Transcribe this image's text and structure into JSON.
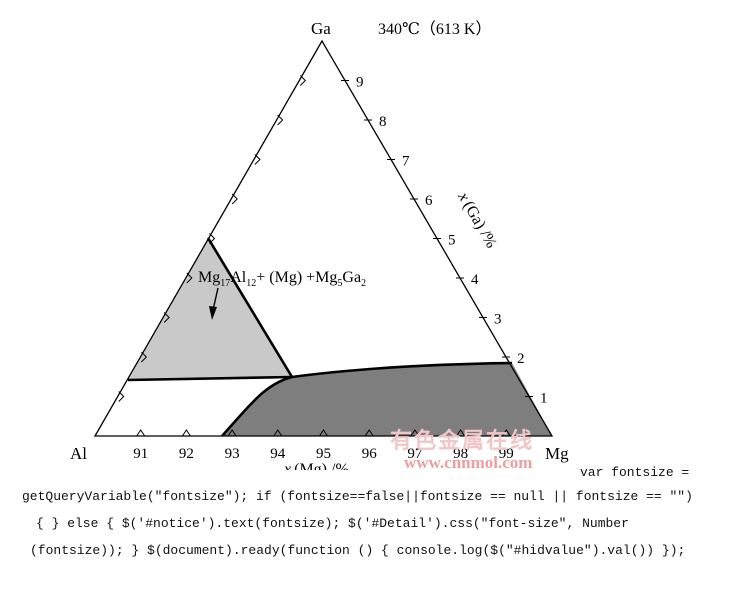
{
  "diagram": {
    "title": "340℃（613 K）",
    "vertices": {
      "top": "Ga",
      "left": "Al",
      "right": "Mg"
    },
    "bottom_axis": {
      "label_var": "x",
      "label_rest": "(Mg) /%",
      "ticks": [
        "91",
        "92",
        "93",
        "94",
        "95",
        "96",
        "97",
        "98",
        "99"
      ]
    },
    "right_axis": {
      "label_var": "x",
      "label_rest": "(Ga) /%",
      "ticks": [
        "1",
        "2",
        "3",
        "4",
        "5",
        "6",
        "7",
        "8",
        "9"
      ]
    },
    "region_label": {
      "p1": "Mg",
      "s1": "17",
      "p2": "Al",
      "s2": "12",
      "p3": "+ (Mg) +Mg",
      "s3": "5",
      "p4": "Ga",
      "s4": "2"
    },
    "colors": {
      "light_region": "#c9c9c9",
      "dark_region": "#7e7e7e",
      "line": "#000000"
    }
  },
  "watermark": {
    "cn": "有色金属在线",
    "url": "www.cnnmol.com"
  },
  "code_text": {
    "line1": "var fontsize =",
    "line2": "getQueryVariable(\"fontsize\"); if (fontsize==false||fontsize == null || fontsize == \"\")",
    "line3": "{ } else { $('#notice').text(fontsize); $('#Detail').css(\"font-size\", Number",
    "line4": "(fontsize)); } $(document).ready(function () { console.log($(\"#hidvalue\").val()) });"
  }
}
